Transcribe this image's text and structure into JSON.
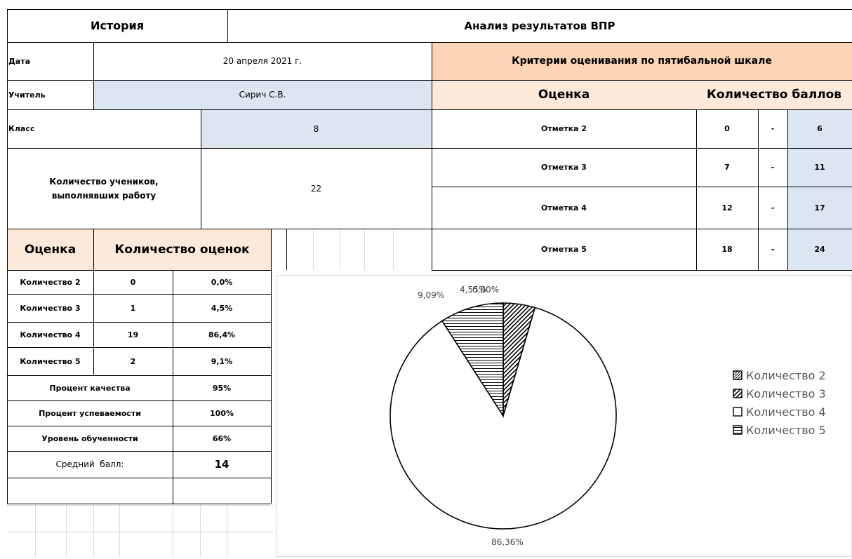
{
  "header": {
    "subject": "История",
    "title": "Анализ результатов ВПР"
  },
  "info": {
    "date_label": "Дата",
    "date_value": "20 апреля 2021 г.",
    "teacher_label": "Учитель",
    "teacher_value": "Сирич С.В.",
    "class_label": "Класс",
    "class_value": "8",
    "students_label": "Количество учеников,\nвыполнявших работу",
    "students_value": "22"
  },
  "criteria": {
    "title": "Критерии оценивания по пятибальной шкале",
    "col_grade": "Оценка",
    "col_points": "Количество баллов",
    "rows": [
      {
        "mark": "Отметка 2",
        "from": "0",
        "dash": "-",
        "to": "6"
      },
      {
        "mark": "Отметка 3",
        "from": "7",
        "dash": "-",
        "to": "11"
      },
      {
        "mark": "Отметка 4",
        "from": "12",
        "dash": "-",
        "to": "17"
      },
      {
        "mark": "Отметка 5",
        "from": "18",
        "dash": "-",
        "to": "24"
      }
    ]
  },
  "results": {
    "col_grade": "Оценка",
    "col_count": "Количество оценок",
    "rows": [
      {
        "label": "Количество 2",
        "count": "0",
        "percent": "0,0%"
      },
      {
        "label": "Количество 3",
        "count": "1",
        "percent": "4,5%"
      },
      {
        "label": "Количество 4",
        "count": "19",
        "percent": "86,4%"
      },
      {
        "label": "Количество 5",
        "count": "2",
        "percent": "9,1%"
      }
    ],
    "quality_label": "Процент качества",
    "quality_value": "95%",
    "progress_label": "Процент успеваемости",
    "progress_value": "100%",
    "level_label": "Уровень обученности",
    "level_value": "66%",
    "avg_label": "Средний  балл:",
    "avg_value": "14"
  },
  "chart_data": {
    "type": "pie",
    "categories": [
      "Количество 2",
      "Количество 3",
      "Количество 4",
      "Количество 5"
    ],
    "values": [
      0,
      1,
      19,
      2
    ],
    "data_labels": [
      "0,00%",
      "4,55%",
      "86,36%",
      "9,09%"
    ],
    "patterns": [
      "crosshatch",
      "diagonal",
      "none",
      "horizontal"
    ],
    "legend_position": "right"
  }
}
